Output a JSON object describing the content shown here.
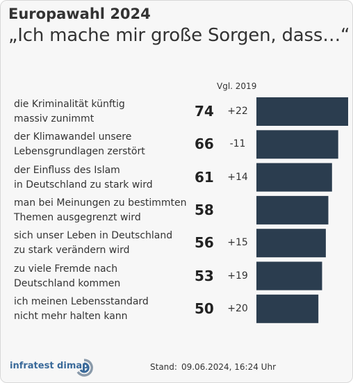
{
  "header": {
    "title": "Europawahl 2024",
    "subtitle": "„Ich mache mir große Sorgen, dass…“"
  },
  "compare_label": "Vgl. 2019",
  "rows": [
    {
      "line1": "die Kriminalität künftig",
      "line2": "massiv zunimmt",
      "value": "74",
      "delta": "+22"
    },
    {
      "line1": "der Klimawandel unsere",
      "line2": "Lebensgrundlagen zerstört",
      "value": "66",
      "delta": "-11"
    },
    {
      "line1": "der Einfluss des Islam",
      "line2": "in Deutschland zu stark wird",
      "value": "61",
      "delta": "+14"
    },
    {
      "line1": "man bei Meinungen zu bestimmten",
      "line2": "Themen ausgegrenzt wird",
      "value": "58",
      "delta": ""
    },
    {
      "line1": "sich unser Leben in Deutschland",
      "line2": "zu stark verändern wird",
      "value": "56",
      "delta": "+15"
    },
    {
      "line1": "zu viele Fremde nach",
      "line2": "Deutschland kommen",
      "value": "53",
      "delta": "+19"
    },
    {
      "line1": "ich meinen Lebensstandard",
      "line2": "nicht mehr halten kann",
      "value": "50",
      "delta": "+20"
    }
  ],
  "chart_data": {
    "type": "bar",
    "orientation": "horizontal",
    "title": "Europawahl 2024",
    "subtitle": "„Ich mache mir große Sorgen, dass…“",
    "categories": [
      "die Kriminalität künftig massiv zunimmt",
      "der Klimawandel unsere Lebensgrundlagen zerstört",
      "der Einfluss des Islam in Deutschland zu stark wird",
      "man bei Meinungen zu bestimmten Themen ausgegrenzt wird",
      "sich unser Leben in Deutschland zu stark verändern wird",
      "zu viele Fremde nach Deutschland kommen",
      "ich meinen Lebensstandard nicht mehr halten kann"
    ],
    "values": [
      74,
      66,
      61,
      58,
      56,
      53,
      50
    ],
    "change_vs_2019": [
      "+22",
      "-11",
      "+14",
      "",
      "+15",
      "+19",
      "+20"
    ],
    "bar_color": "#2b3d4f",
    "xlim": [
      0,
      74
    ],
    "grid": false,
    "legend": "none"
  },
  "footer": {
    "brand": "infratest dimap",
    "stand_label": "Stand:",
    "stand_value": "09.06.2024, 16:24 Uhr"
  }
}
